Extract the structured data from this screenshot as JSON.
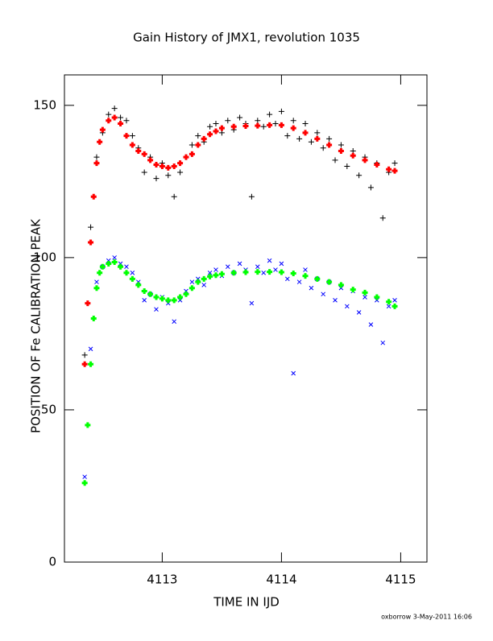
{
  "chart_data": {
    "type": "scatter",
    "title": "Gain History of JMX1, revolution 1035",
    "xlabel": "TIME IN IJD",
    "ylabel": "POSITION OF Fe CALIBRATION PEAK",
    "footer": "oxborrow  3-May-2011 16:06",
    "xlim": [
      4112.18,
      4115.22
    ],
    "ylim": [
      0,
      160
    ],
    "xticks": [
      4113,
      4114,
      4115
    ],
    "yticks": [
      0,
      50,
      100,
      150
    ],
    "series": [
      {
        "color": "#000000",
        "marker": "plus",
        "stroke_width": 1,
        "x": [
          4112.35,
          4112.4,
          4112.45,
          4112.5,
          4112.55,
          4112.6,
          4112.65,
          4112.7,
          4112.75,
          4112.8,
          4112.85,
          4112.9,
          4112.95,
          4113.0,
          4113.05,
          4113.1,
          4113.15,
          4113.2,
          4113.25,
          4113.3,
          4113.35,
          4113.4,
          4113.45,
          4113.5,
          4113.55,
          4113.6,
          4113.65,
          4113.7,
          4113.75,
          4113.8,
          4113.85,
          4113.9,
          4113.95,
          4114.0,
          4114.05,
          4114.1,
          4114.15,
          4114.2,
          4114.25,
          4114.3,
          4114.35,
          4114.4,
          4114.45,
          4114.5,
          4114.55,
          4114.6,
          4114.65,
          4114.7,
          4114.75,
          4114.8,
          4114.85,
          4114.9,
          4114.95
        ],
        "values": [
          68,
          110,
          133,
          141,
          147,
          149,
          146,
          145,
          140,
          136,
          128,
          133,
          126,
          131,
          127,
          120,
          128,
          133,
          137,
          140,
          138,
          143,
          144,
          141,
          145,
          142,
          146,
          144,
          120,
          145,
          143,
          147,
          144,
          148,
          140,
          145,
          139,
          144,
          138,
          141,
          136,
          139,
          132,
          137,
          130,
          135,
          127,
          133,
          123,
          131,
          113,
          128,
          131
        ]
      },
      {
        "color": "#0000ff",
        "marker": "cross",
        "stroke_width": 1,
        "x": [
          4112.35,
          4112.4,
          4112.45,
          4112.5,
          4112.55,
          4112.6,
          4112.65,
          4112.7,
          4112.75,
          4112.8,
          4112.85,
          4112.9,
          4112.95,
          4113.0,
          4113.05,
          4113.1,
          4113.15,
          4113.2,
          4113.25,
          4113.3,
          4113.35,
          4113.4,
          4113.45,
          4113.5,
          4113.55,
          4113.6,
          4113.65,
          4113.7,
          4113.75,
          4113.8,
          4113.85,
          4113.9,
          4113.95,
          4114.0,
          4114.05,
          4114.1,
          4114.15,
          4114.2,
          4114.25,
          4114.3,
          4114.35,
          4114.4,
          4114.45,
          4114.5,
          4114.55,
          4114.6,
          4114.65,
          4114.7,
          4114.75,
          4114.8,
          4114.85,
          4114.9,
          4114.95
        ],
        "values": [
          28,
          70,
          92,
          97,
          99,
          100,
          98,
          97,
          95,
          92,
          86,
          88,
          83,
          87,
          85,
          79,
          86,
          89,
          92,
          93,
          91,
          95,
          96,
          94,
          97,
          95,
          98,
          96,
          85,
          97,
          95,
          99,
          96,
          98,
          93,
          62,
          92,
          96,
          90,
          93,
          88,
          92,
          86,
          90,
          84,
          89,
          82,
          87,
          78,
          86,
          72,
          84,
          86
        ]
      },
      {
        "color": "#ff0000",
        "marker": "plus",
        "stroke_width": 3,
        "x": [
          4112.35,
          4112.375,
          4112.4,
          4112.425,
          4112.45,
          4112.475,
          4112.5,
          4112.55,
          4112.6,
          4112.65,
          4112.7,
          4112.75,
          4112.8,
          4112.85,
          4112.9,
          4112.95,
          4113.0,
          4113.05,
          4113.1,
          4113.15,
          4113.2,
          4113.25,
          4113.3,
          4113.35,
          4113.4,
          4113.45,
          4113.5,
          4113.6,
          4113.7,
          4113.8,
          4113.9,
          4114.0,
          4114.1,
          4114.2,
          4114.3,
          4114.4,
          4114.5,
          4114.6,
          4114.7,
          4114.8,
          4114.9,
          4114.95
        ],
        "values": [
          65,
          85,
          105,
          120,
          131,
          138,
          142,
          145,
          146,
          144,
          140,
          137,
          135,
          134,
          132,
          130.5,
          130,
          129.5,
          130,
          131,
          133,
          134,
          137,
          139,
          140.5,
          141.5,
          142.5,
          143,
          143.2,
          143.3,
          143.5,
          143.5,
          142.5,
          141,
          139,
          137,
          135,
          133.5,
          132,
          130.5,
          129,
          128.5
        ]
      },
      {
        "color": "#00ff00",
        "marker": "plus",
        "stroke_width": 3,
        "x": [
          4112.35,
          4112.375,
          4112.4,
          4112.425,
          4112.45,
          4112.475,
          4112.5,
          4112.55,
          4112.6,
          4112.65,
          4112.7,
          4112.75,
          4112.8,
          4112.85,
          4112.9,
          4112.95,
          4113.0,
          4113.05,
          4113.1,
          4113.15,
          4113.2,
          4113.25,
          4113.3,
          4113.35,
          4113.4,
          4113.45,
          4113.5,
          4113.6,
          4113.7,
          4113.8,
          4113.9,
          4114.0,
          4114.1,
          4114.2,
          4114.3,
          4114.4,
          4114.5,
          4114.6,
          4114.7,
          4114.8,
          4114.9,
          4114.95
        ],
        "values": [
          26,
          45,
          65,
          80,
          90,
          95,
          97,
          98,
          98.5,
          97,
          95,
          93,
          91,
          89,
          88,
          87,
          86.5,
          86,
          86,
          87,
          88,
          90,
          92,
          93,
          93.8,
          94.2,
          94.6,
          95,
          95.2,
          95.3,
          95.3,
          95.2,
          94.8,
          94,
          93,
          92,
          91,
          89.5,
          88.5,
          87,
          85.5,
          84
        ]
      }
    ]
  }
}
